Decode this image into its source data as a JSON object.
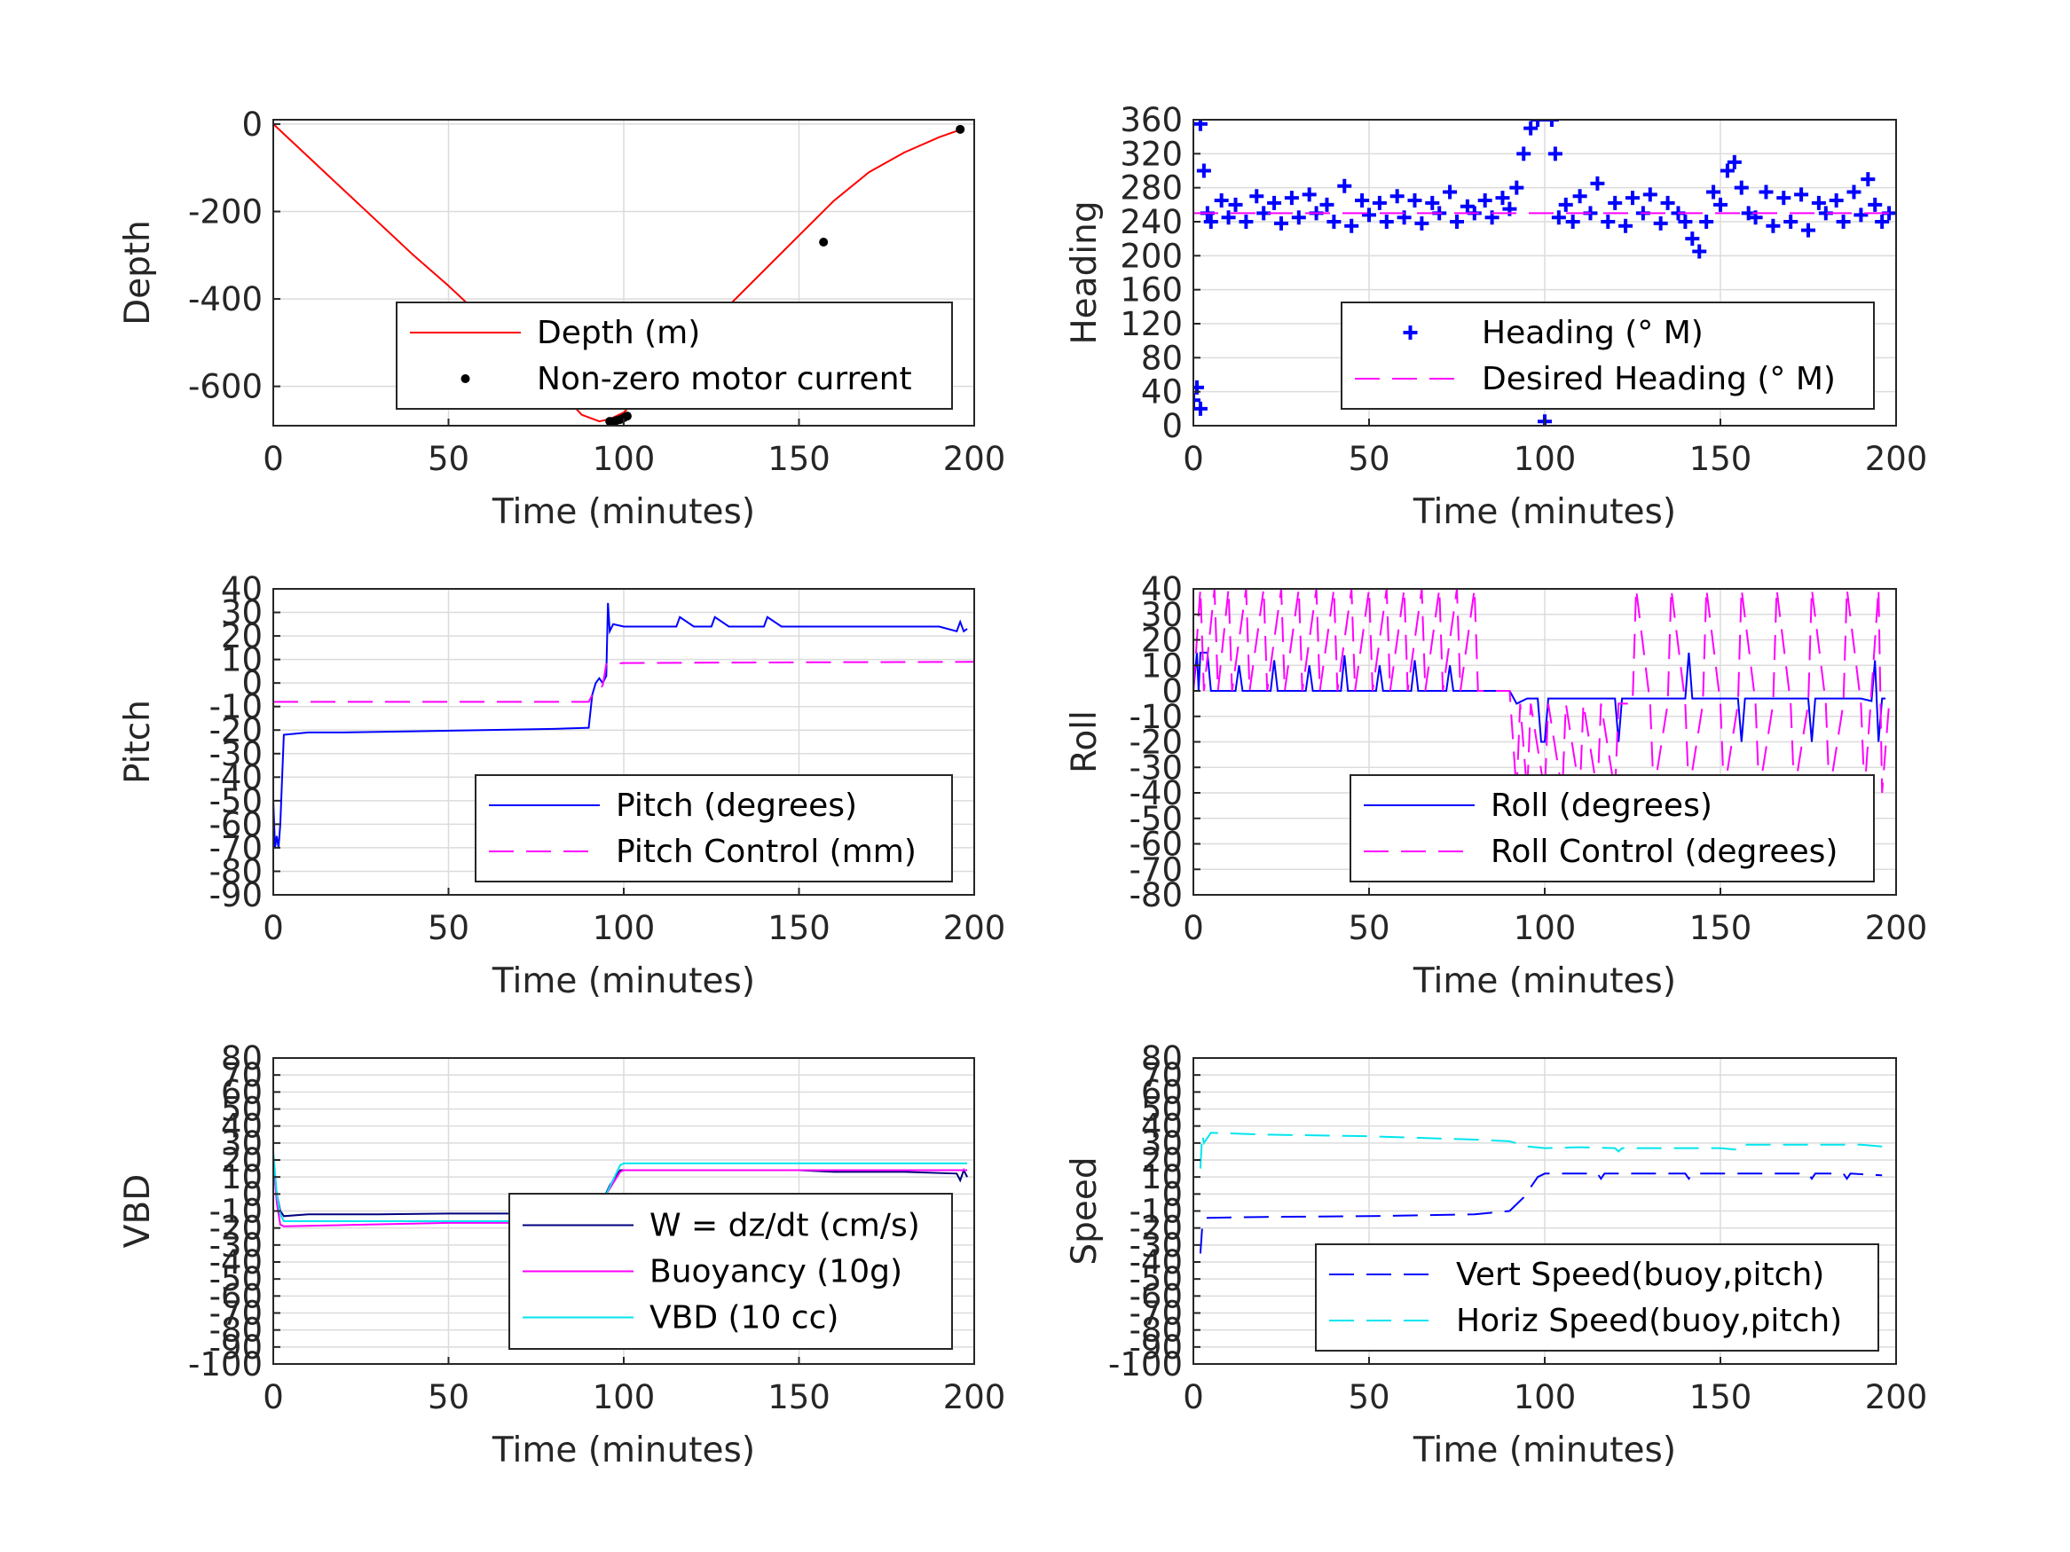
{
  "chart_data": [
    {
      "id": "depth",
      "type": "line",
      "title": "",
      "xlabel": "Time (minutes)",
      "ylabel": "Depth",
      "xlim": [
        0,
        200
      ],
      "ylim": [
        -690,
        10
      ],
      "xticks": [
        0,
        50,
        100,
        150,
        200
      ],
      "yticks": [
        0,
        -200,
        -400,
        -600
      ],
      "grid": true,
      "legend": {
        "placement": "inside-bottom-right"
      },
      "series": [
        {
          "name": "Depth (m)",
          "style": "solid",
          "color": "#ff0000",
          "x": [
            0,
            10,
            20,
            30,
            40,
            50,
            60,
            70,
            80,
            88,
            93,
            96,
            100,
            110,
            120,
            130,
            140,
            150,
            160,
            170,
            180,
            190,
            197
          ],
          "y": [
            0,
            -75,
            -150,
            -225,
            -300,
            -370,
            -445,
            -520,
            -595,
            -665,
            -680,
            -675,
            -660,
            -575,
            -495,
            -415,
            -335,
            -255,
            -175,
            -110,
            -65,
            -30,
            -10
          ]
        },
        {
          "name": "Non-zero motor current",
          "style": "dot",
          "color": "#000000",
          "x": [
            96,
            97,
            98,
            99,
            100,
            101,
            157,
            196
          ],
          "y": [
            -680,
            -680,
            -678,
            -676,
            -672,
            -668,
            -270,
            -12
          ]
        }
      ]
    },
    {
      "id": "heading",
      "type": "scatter",
      "title": "",
      "xlabel": "Time (minutes)",
      "ylabel": "Heading",
      "xlim": [
        0,
        200
      ],
      "ylim": [
        0,
        360
      ],
      "xticks": [
        0,
        50,
        100,
        150,
        200
      ],
      "yticks": [
        0,
        40,
        80,
        120,
        160,
        200,
        240,
        280,
        320,
        360
      ],
      "grid": true,
      "legend": {
        "placement": "inside-bottom-right"
      },
      "series": [
        {
          "name": "Heading (° M)",
          "style": "plus",
          "color": "#0000ff",
          "x": [
            0,
            1,
            2,
            2,
            3,
            4,
            5,
            8,
            10,
            12,
            15,
            18,
            20,
            23,
            25,
            28,
            30,
            33,
            35,
            38,
            40,
            43,
            45,
            48,
            50,
            53,
            55,
            58,
            60,
            63,
            65,
            68,
            70,
            73,
            75,
            78,
            80,
            83,
            85,
            88,
            90,
            92,
            94,
            96,
            98,
            99,
            100,
            101,
            102,
            103,
            104,
            106,
            108,
            110,
            113,
            115,
            118,
            120,
            123,
            125,
            128,
            130,
            133,
            135,
            138,
            140,
            142,
            144,
            146,
            148,
            150,
            152,
            154,
            156,
            158,
            160,
            163,
            165,
            168,
            170,
            173,
            175,
            178,
            180,
            183,
            185,
            188,
            190,
            192,
            194,
            196,
            198
          ],
          "y": [
            30,
            45,
            20,
            355,
            300,
            250,
            240,
            265,
            245,
            260,
            240,
            270,
            250,
            262,
            238,
            268,
            245,
            272,
            250,
            260,
            240,
            282,
            235,
            265,
            248,
            262,
            240,
            270,
            245,
            265,
            238,
            262,
            250,
            275,
            240,
            258,
            250,
            265,
            245,
            268,
            255,
            280,
            320,
            350,
            360,
            30,
            5,
            45,
            360,
            320,
            245,
            260,
            240,
            270,
            250,
            285,
            240,
            262,
            235,
            268,
            250,
            272,
            238,
            262,
            250,
            240,
            220,
            205,
            240,
            275,
            260,
            300,
            310,
            280,
            250,
            245,
            275,
            235,
            268,
            240,
            272,
            230,
            262,
            250,
            265,
            240,
            275,
            248,
            290,
            260,
            240,
            250
          ]
        },
        {
          "name": "Desired Heading (° M)",
          "style": "dash",
          "color": "#ff00ff",
          "x": [
            0,
            93,
            100,
            200
          ],
          "y": [
            250,
            250,
            250,
            250
          ]
        }
      ]
    },
    {
      "id": "pitch",
      "type": "line",
      "title": "",
      "xlabel": "Time (minutes)",
      "ylabel": "Pitch",
      "xlim": [
        0,
        200
      ],
      "ylim": [
        -90,
        40
      ],
      "xticks": [
        0,
        50,
        100,
        150,
        200
      ],
      "yticks": [
        40,
        30,
        20,
        10,
        0,
        -10,
        -20,
        -30,
        -40,
        -50,
        -60,
        -70,
        -80,
        -90
      ],
      "grid": true,
      "legend": {
        "placement": "inside-bottom-right"
      },
      "series": [
        {
          "name": "Pitch (degrees)",
          "style": "solid",
          "color": "#0000ff",
          "x": [
            0,
            0.5,
            1,
            1.5,
            2,
            3,
            10,
            20,
            40,
            60,
            80,
            90,
            91,
            92,
            93,
            94,
            95,
            95.5,
            96,
            97,
            100,
            110,
            115,
            116,
            120,
            125,
            126,
            130,
            140,
            141,
            145,
            150,
            160,
            170,
            180,
            190,
            195,
            196,
            197,
            198
          ],
          "y": [
            -50,
            -70,
            -65,
            -70,
            -60,
            -22,
            -21,
            -21,
            -20.5,
            -20,
            -19.5,
            -19,
            -5,
            0,
            2,
            0,
            3,
            34,
            22,
            25,
            24,
            24,
            24,
            28,
            24,
            24,
            28,
            24,
            24,
            28,
            24,
            24,
            24,
            24,
            24,
            24,
            22,
            26,
            22,
            23
          ]
        },
        {
          "name": "Pitch Control (mm)",
          "style": "dash",
          "color": "#ff00ff",
          "x": [
            0,
            89,
            90,
            91,
            93,
            94,
            95,
            100,
            150,
            200
          ],
          "y": [
            -8,
            -8,
            -8,
            -5,
            -3,
            -1,
            8,
            8.5,
            8.8,
            9
          ]
        }
      ]
    },
    {
      "id": "roll",
      "type": "line",
      "title": "",
      "xlabel": "Time (minutes)",
      "ylabel": "Roll",
      "xlim": [
        0,
        200
      ],
      "ylim": [
        -80,
        40
      ],
      "xticks": [
        0,
        50,
        100,
        150,
        200
      ],
      "yticks": [
        40,
        30,
        20,
        10,
        0,
        -10,
        -20,
        -30,
        -40,
        -50,
        -60,
        -70,
        -80
      ],
      "grid": true,
      "legend": {
        "placement": "inside-bottom-right"
      },
      "series": [
        {
          "name": "Roll (degrees)",
          "style": "solid",
          "color": "#0000ff",
          "x": [
            0,
            1,
            1.5,
            2,
            4,
            5,
            10,
            12,
            13,
            14,
            20,
            22,
            23,
            24,
            30,
            32,
            33,
            34,
            40,
            42,
            43,
            44,
            50,
            52,
            53,
            54,
            60,
            62,
            63,
            64,
            70,
            72,
            73,
            74,
            80,
            85,
            90,
            92,
            95,
            98,
            99,
            100,
            101,
            105,
            106,
            107,
            110,
            120,
            121,
            122,
            130,
            140,
            141,
            142,
            150,
            155,
            156,
            157,
            160,
            170,
            175,
            176,
            177,
            180,
            185,
            190,
            193,
            194,
            195,
            196,
            197
          ],
          "y": [
            0,
            15,
            0,
            15,
            15,
            0,
            0,
            0,
            10,
            0,
            0,
            0,
            12,
            0,
            0,
            0,
            10,
            0,
            0,
            0,
            14,
            0,
            0,
            0,
            10,
            0,
            0,
            0,
            12,
            0,
            0,
            0,
            10,
            0,
            0,
            0,
            0,
            -5,
            -3,
            -3,
            -20,
            -20,
            -3,
            -3,
            -3,
            -3,
            -3,
            -3,
            -20,
            -3,
            -3,
            -3,
            15,
            -3,
            -3,
            -3,
            -20,
            -3,
            -3,
            -3,
            -3,
            -20,
            -3,
            -3,
            -3,
            -3,
            -4,
            12,
            -20,
            -3,
            -3
          ]
        },
        {
          "name": "Roll Control (degrees)",
          "style": "dash",
          "color": "#ff00ff",
          "x": [
            0,
            2,
            3,
            6,
            7,
            10,
            11,
            15,
            16,
            20,
            21,
            25,
            26,
            30,
            31,
            35,
            36,
            40,
            41,
            45,
            46,
            50,
            51,
            55,
            56,
            60,
            61,
            65,
            66,
            70,
            71,
            75,
            76,
            80,
            81,
            85,
            90,
            92,
            93,
            95,
            96,
            100,
            101,
            105,
            106,
            110,
            111,
            115,
            116,
            120,
            121,
            125,
            126,
            130,
            131,
            135,
            136,
            140,
            141,
            145,
            146,
            150,
            151,
            155,
            156,
            160,
            161,
            165,
            166,
            170,
            171,
            175,
            176,
            180,
            181,
            185,
            186,
            190,
            191,
            195,
            196,
            198
          ],
          "y": [
            0,
            40,
            0,
            40,
            0,
            40,
            0,
            40,
            0,
            40,
            0,
            40,
            0,
            40,
            0,
            40,
            0,
            40,
            0,
            40,
            0,
            40,
            0,
            40,
            0,
            40,
            0,
            40,
            0,
            40,
            0,
            40,
            0,
            40,
            0,
            0,
            0,
            -40,
            -5,
            -40,
            -5,
            -40,
            -5,
            -40,
            -5,
            -40,
            -5,
            -40,
            -5,
            -40,
            -5,
            -5,
            40,
            -5,
            -40,
            -5,
            40,
            -5,
            -40,
            -5,
            40,
            -5,
            -40,
            -5,
            40,
            -5,
            -40,
            -5,
            40,
            -5,
            -40,
            -5,
            40,
            -5,
            -40,
            -5,
            40,
            -5,
            -40,
            40,
            -40,
            -5
          ]
        }
      ]
    },
    {
      "id": "vbd",
      "type": "line",
      "title": "",
      "xlabel": "Time (minutes)",
      "ylabel": "VBD",
      "xlim": [
        0,
        200
      ],
      "ylim": [
        -100,
        80
      ],
      "xticks": [
        0,
        50,
        100,
        150,
        200
      ],
      "yticks": [
        80,
        70,
        60,
        50,
        40,
        30,
        20,
        10,
        0,
        -10,
        -20,
        -30,
        -40,
        -50,
        -60,
        -70,
        -80,
        -90,
        -100
      ],
      "grid": true,
      "legend": {
        "placement": "inside-bottom-right"
      },
      "series": [
        {
          "name": "W = dz/dt (cm/s)",
          "style": "solid",
          "color": "#000080",
          "x": [
            0,
            1,
            2,
            3,
            10,
            30,
            50,
            70,
            88,
            91,
            93,
            96,
            99,
            100,
            110,
            130,
            150,
            160,
            180,
            195,
            196,
            197,
            198
          ],
          "y": [
            20,
            0,
            -10,
            -13,
            -12,
            -12,
            -11.5,
            -11.5,
            -11,
            -5,
            -8,
            5,
            14,
            14,
            14,
            14,
            14,
            13,
            13,
            12,
            8,
            14,
            10
          ]
        },
        {
          "name": "Buoyancy (10g)",
          "style": "solid",
          "color": "#ff00ff",
          "x": [
            0,
            1,
            2,
            3,
            50,
            90,
            95,
            99,
            100,
            150,
            198
          ],
          "y": [
            20,
            -5,
            -18,
            -19,
            -17,
            -17,
            0,
            13,
            14,
            14,
            14
          ]
        },
        {
          "name": "VBD (10 cc)",
          "style": "solid",
          "color": "#00e5ee",
          "x": [
            0,
            1,
            2,
            3,
            50,
            90,
            95,
            99,
            100,
            150,
            198
          ],
          "y": [
            25,
            0,
            -12,
            -16,
            -16,
            -16,
            0,
            17,
            18,
            18,
            18
          ]
        }
      ]
    },
    {
      "id": "speed",
      "type": "line",
      "title": "",
      "xlabel": "Time (minutes)",
      "ylabel": "Speed",
      "xlim": [
        0,
        200
      ],
      "ylim": [
        -100,
        80
      ],
      "xticks": [
        0,
        50,
        100,
        150,
        200
      ],
      "yticks": [
        80,
        70,
        60,
        50,
        40,
        30,
        20,
        10,
        0,
        -10,
        -20,
        -30,
        -40,
        -50,
        -60,
        -70,
        -80,
        -90,
        -100
      ],
      "grid": true,
      "legend": {
        "placement": "inside-bottom-right"
      },
      "series": [
        {
          "name": "Vert Speed(buoy,pitch)",
          "style": "dash",
          "color": "#0000ff",
          "x": [
            2,
            2.5,
            3,
            4,
            20,
            50,
            80,
            90,
            94,
            98,
            100,
            110,
            115,
            116,
            117,
            130,
            140,
            141,
            142,
            150,
            160,
            175,
            176,
            177,
            185,
            186,
            187,
            196
          ],
          "y": [
            -35,
            -20,
            -15,
            -14,
            -13.5,
            -13,
            -12,
            -10,
            -2,
            10,
            12,
            12,
            12,
            9,
            12,
            12,
            12,
            9,
            12,
            12,
            12,
            12,
            9,
            12,
            12,
            9,
            12,
            11
          ]
        },
        {
          "name": "Horiz Speed(buoy,pitch)",
          "style": "dash",
          "color": "#00e5ee",
          "x": [
            2,
            2.5,
            3,
            5,
            20,
            50,
            80,
            90,
            95,
            100,
            110,
            120,
            121,
            122,
            140,
            150,
            155,
            156,
            160,
            170,
            180,
            190,
            196
          ],
          "y": [
            15,
            35,
            30,
            36,
            35,
            34,
            32,
            31,
            28,
            27,
            27.5,
            27,
            25,
            27,
            27,
            27,
            26,
            29,
            29,
            29,
            29,
            29,
            28
          ]
        }
      ]
    }
  ]
}
